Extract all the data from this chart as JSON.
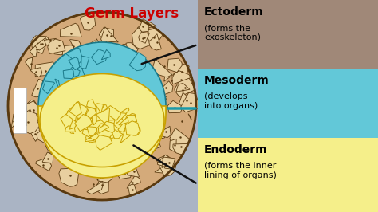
{
  "title": "Germ Layers",
  "title_color": "#cc0000",
  "bg_color": "#aab4c4",
  "layers": [
    {
      "name": "Ectoderm",
      "desc": "(forms the\nexoskeleton)",
      "box_color": "#a08878",
      "text_color": "#000000"
    },
    {
      "name": "Mesoderm",
      "desc": "(develops\ninto organs)",
      "box_color": "#62c8d8",
      "text_color": "#000000"
    },
    {
      "name": "Endoderm",
      "desc": "(forms the inner\nlining of organs)",
      "box_color": "#f5ef8a",
      "text_color": "#000000"
    }
  ],
  "ecto_color": "#d4aa7a",
  "ecto_cell_color": "#e8cfa0",
  "ecto_outline": "#5a3a10",
  "meso_color": "#62c8d8",
  "meso_outline": "#1a7888",
  "endo_color": "#f5ef8a",
  "endo_outline": "#c8a000",
  "arrow_color": "#111111",
  "meso_line_color": "#1a9aaa"
}
